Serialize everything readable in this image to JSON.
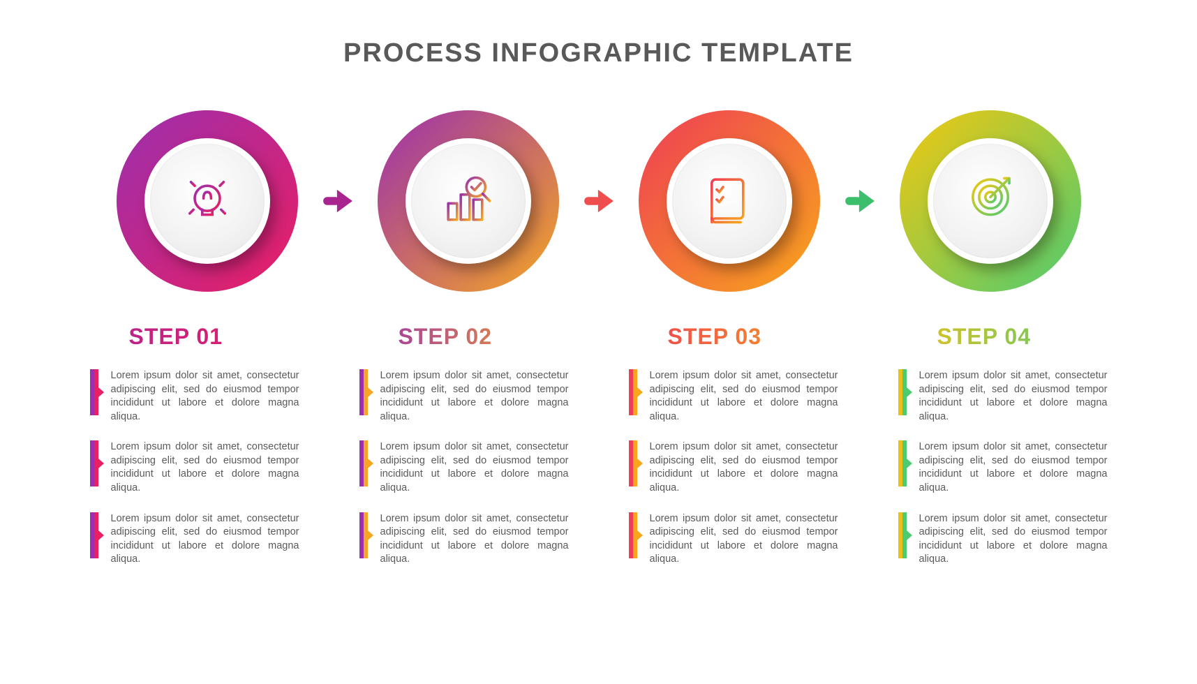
{
  "title": "PROCESS INFOGRAPHIC TEMPLATE",
  "title_color": "#595959",
  "title_fontsize": 38,
  "background_color": "#ffffff",
  "body_text_color": "#5a5a5a",
  "body_fontsize": 14.5,
  "step_label_fontsize": 32,
  "circle_outer_diameter": 260,
  "circle_inner_diameter": 180,
  "inner_border_width": 8,
  "bullet_text": "Lorem ipsum dolor sit amet, consectetur adipiscing elit, sed do eiusmod tempor incididunt ut labore et dolore magna aliqua.",
  "steps": [
    {
      "label": "STEP 01",
      "icon": "lightbulb",
      "gradient_start": "#9b2fae",
      "gradient_end": "#e91e63",
      "label_grad_start": "#b3248e",
      "label_grad_end": "#e91e63",
      "marker_start": "#9b2fae",
      "marker_end": "#e91e63",
      "arrow_to_next": "#a8248f"
    },
    {
      "label": "STEP 02",
      "icon": "analytics",
      "gradient_start": "#9b2fae",
      "gradient_end": "#f5a623",
      "label_grad_start": "#9b2fae",
      "label_grad_end": "#f5a623",
      "marker_start": "#9b2fae",
      "marker_end": "#f5a623",
      "arrow_to_next": "#f04e4e"
    },
    {
      "label": "STEP 03",
      "icon": "checklist",
      "gradient_start": "#ef3d55",
      "gradient_end": "#f7a61b",
      "label_grad_start": "#ef3d55",
      "label_grad_end": "#f7a61b",
      "marker_start": "#ef3d55",
      "marker_end": "#f7a61b",
      "arrow_to_next": "#3cbf6c"
    },
    {
      "label": "STEP 04",
      "icon": "target",
      "gradient_start": "#f3c70f",
      "gradient_end": "#4ecb71",
      "label_grad_start": "#e8c11a",
      "label_grad_end": "#4ecb71",
      "marker_start": "#e8c11a",
      "marker_end": "#4ecb71",
      "arrow_to_next": null
    }
  ],
  "bullets_per_step": 3
}
